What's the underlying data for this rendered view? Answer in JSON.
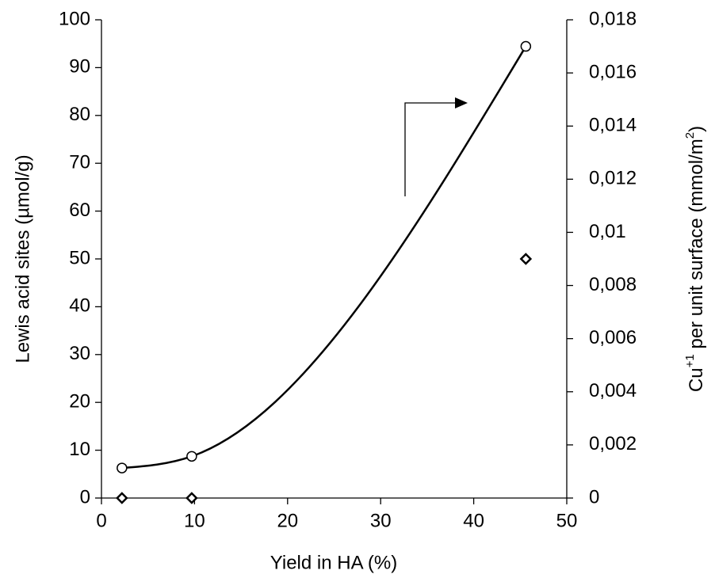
{
  "chart_data": {
    "type": "scatter",
    "xlabel": "Yield in HA (%)",
    "ylabel": "Lewis acid sites (µmol/g)",
    "y2label": [
      "Cu",
      "+1",
      " per unit surface (mmol/m",
      "2",
      ")"
    ],
    "x": [
      2.2,
      9.7,
      45.6
    ],
    "series": [
      {
        "color": "#000000",
        "marker": "diamond",
        "values": [
          0,
          0,
          50
        ]
      },
      {
        "color": "#000000",
        "marker": "circle",
        "axis": "y2",
        "smooth_line": true,
        "values": [
          0.00113,
          0.00157,
          0.017
        ]
      }
    ],
    "xlim": [
      0,
      50
    ],
    "xticks": [
      0,
      10,
      20,
      30,
      40,
      50
    ],
    "ylim": [
      0,
      100
    ],
    "yticks": [
      0,
      10,
      20,
      30,
      40,
      50,
      60,
      70,
      80,
      90,
      100
    ],
    "y2lim": [
      0,
      0.018
    ],
    "y2ticks": [
      0,
      {
        "value": 0.002,
        "label": "0,002"
      },
      {
        "value": 0.004,
        "label": "0,004"
      },
      {
        "value": 0.006,
        "label": "0,006"
      },
      {
        "value": 0.008,
        "label": "0,008"
      },
      {
        "value": 0.01,
        "label": "0,01"
      },
      {
        "value": 0.012,
        "label": "0,012"
      },
      {
        "value": 0.014,
        "label": "0,014"
      },
      {
        "value": 0.016,
        "label": "0,016"
      },
      {
        "value": 0.018,
        "label": "0,018"
      }
    ],
    "grid": false
  }
}
